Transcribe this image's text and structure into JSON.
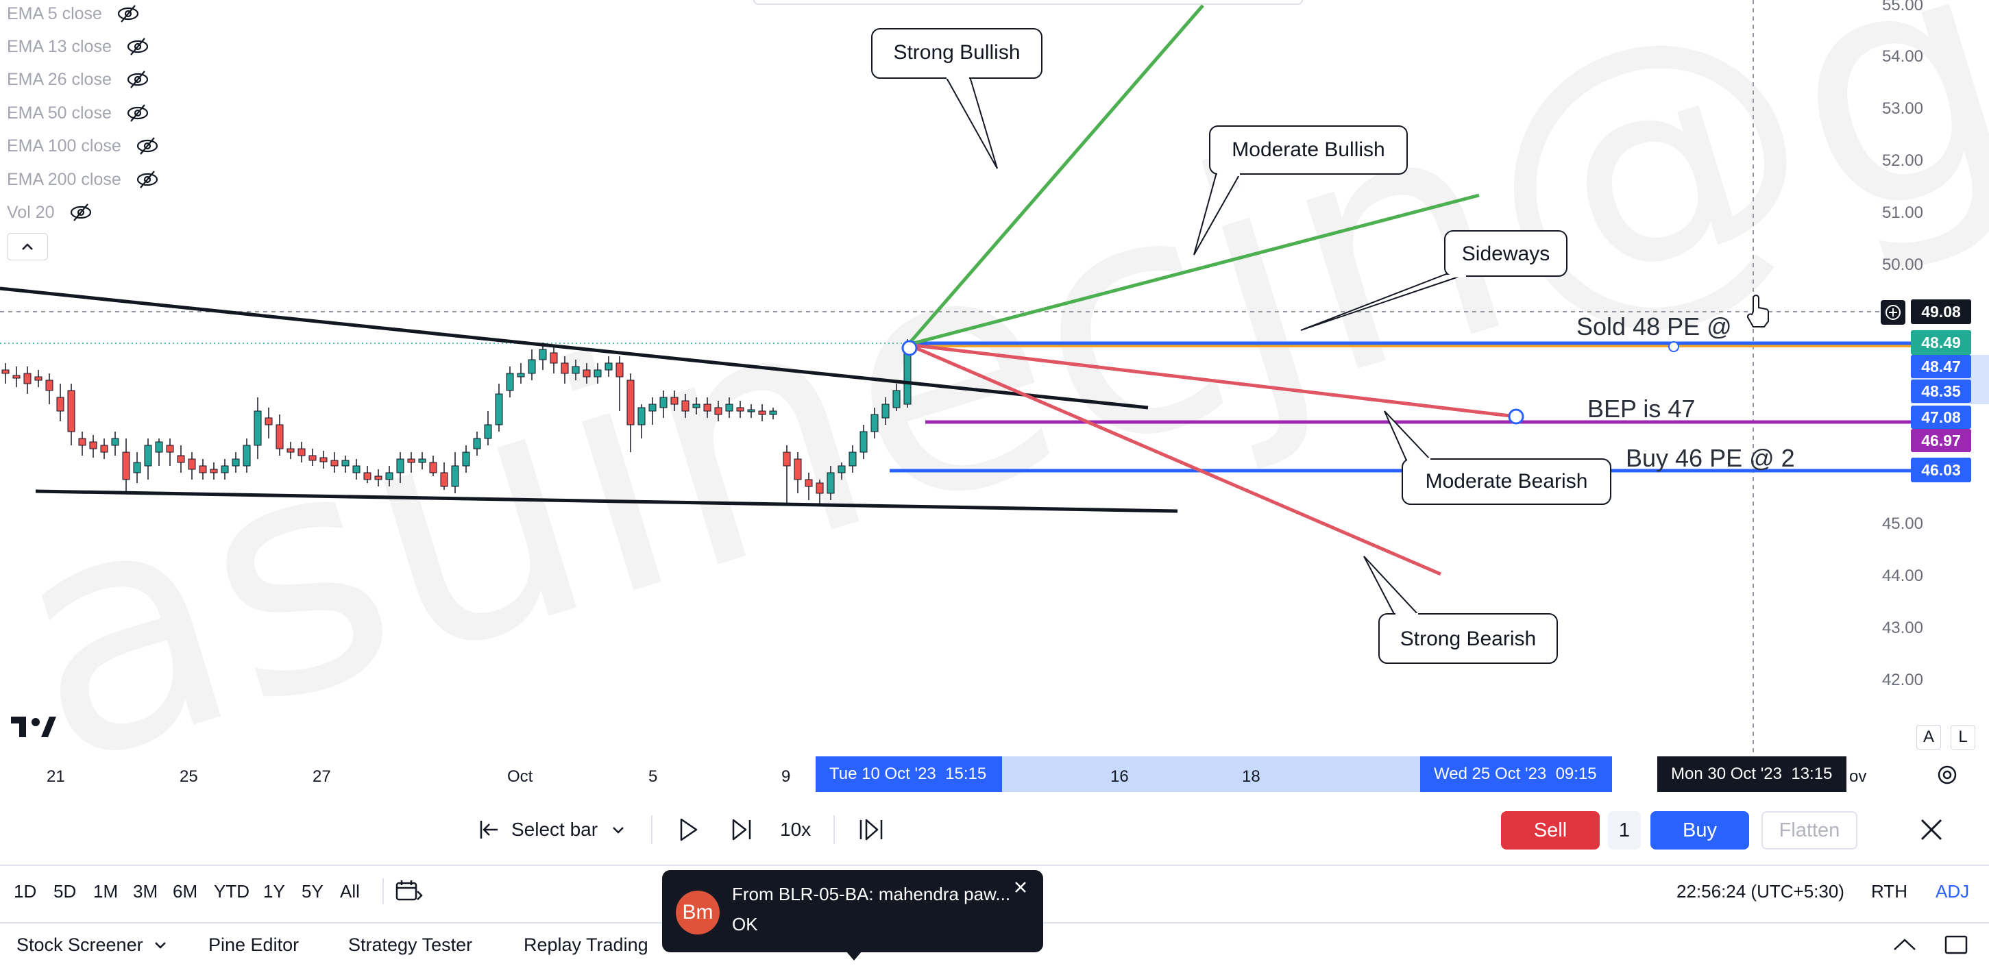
{
  "indicators": [
    {
      "label": "EMA 5 close"
    },
    {
      "label": "EMA 13 close"
    },
    {
      "label": "EMA 26 close"
    },
    {
      "label": "EMA 50 close"
    },
    {
      "label": "EMA 100 close"
    },
    {
      "label": "EMA 200 close"
    },
    {
      "label": "Vol 20"
    }
  ],
  "price_axis": {
    "ticks": [
      "55.00",
      "54.00",
      "53.00",
      "52.00",
      "51.00",
      "50.00",
      "45.00",
      "44.00",
      "43.00",
      "42.00"
    ],
    "tags": [
      {
        "text": "49.08",
        "color": "#131722"
      },
      {
        "text": "48.49",
        "color": "#22ab94"
      },
      {
        "text": "48.47",
        "color": "#2962ff"
      },
      {
        "text": "48.35",
        "color": "#2962ff"
      },
      {
        "text": "47.08",
        "color": "#2962ff"
      },
      {
        "text": "46.97",
        "color": "#9c27b0"
      },
      {
        "text": "46.03",
        "color": "#2962ff"
      }
    ],
    "auto_label": "A",
    "log_label": "L"
  },
  "annotations": {
    "callouts": [
      "Strong Bullish",
      "Moderate Bullish",
      "Sideways",
      "Moderate Bearish",
      "Strong Bearish"
    ],
    "sold": "Sold 48 PE @",
    "bep": "BEP is 47",
    "buy": "Buy 46 PE @ 2"
  },
  "time_axis": {
    "ticks": [
      "21",
      "25",
      "27",
      "Oct",
      "5",
      "9",
      "16",
      "18"
    ],
    "range_start": "Tue 10 Oct '23",
    "range_start_time": "15:15",
    "range_end": "Wed 25 Oct '23",
    "range_end_time": "09:15",
    "cursor_date": "Mon 30 Oct '23",
    "cursor_time": "13:15",
    "cutoff_text": "ov"
  },
  "watermark": "asuinecjn@gmail.cor",
  "replay": {
    "select_bar": "Select bar",
    "speed": "10x",
    "sell": "Sell",
    "quantity": "1",
    "buy": "Buy",
    "flatten": "Flatten"
  },
  "ranges": [
    "1D",
    "5D",
    "1M",
    "3M",
    "6M",
    "YTD",
    "1Y",
    "5Y",
    "All"
  ],
  "status": {
    "clock": "22:56:24 (UTC+5:30)",
    "session": "RTH",
    "adj": "ADJ"
  },
  "tabs": [
    "Stock Screener",
    "Pine Editor",
    "Strategy Tester",
    "Replay Trading"
  ],
  "toast": {
    "avatar": "Bm",
    "title": "From BLR-05-BA: mahendra paw...",
    "body": "OK"
  },
  "colors": {
    "bull_candle": "#26a69a",
    "bear_candle": "#ef5350",
    "green_line": "#4caf50",
    "red_line": "#e05562",
    "blue_line": "#2962ff",
    "purple_line": "#9c27b0",
    "orange_line": "#f5a623"
  }
}
